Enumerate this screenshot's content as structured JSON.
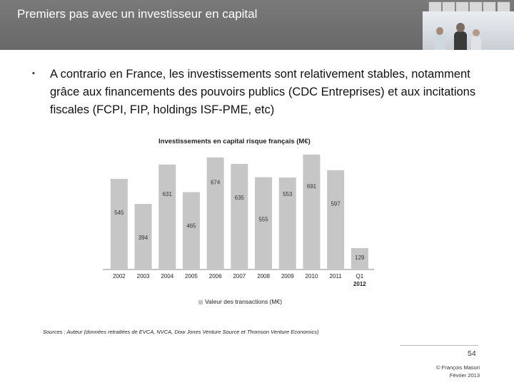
{
  "slide": {
    "title": "Premiers pas avec un investisseur en capital",
    "bullet_marker": "▪",
    "paragraph": "A contrario en France, les investissements sont relativement stables, notamment grâce aux financements des pouvoirs publics (CDC Entreprises) et aux incitations fiscales (FCPI, FIP, holdings ISF-PME, etc)",
    "sources": "Sources : Auteur (données retraitées de EVCA, NVCA, Dow Jones Venture Source et Thomson Venture Economics)",
    "page_number": "54",
    "credit_author": "© François Masuri",
    "credit_date": "Février 2013"
  },
  "colors": {
    "header": "#707070",
    "bar": "#c6c6c6",
    "axis": "#888888"
  },
  "chart_data": {
    "type": "bar",
    "title": "Investissements en capital risque français (M€)",
    "categories": [
      "2002",
      "2003",
      "2004",
      "2005",
      "2006",
      "2007",
      "2008",
      "2009",
      "2010",
      "2011",
      "Q1 2012"
    ],
    "series": [
      {
        "name": "Valeur des transactions (M€)",
        "values": [
          545,
          394,
          631,
          465,
          674,
          635,
          555,
          553,
          691,
          597,
          129
        ]
      }
    ],
    "ylim": [
      0,
      720
    ],
    "grid": false,
    "legend_position": "bottom"
  }
}
